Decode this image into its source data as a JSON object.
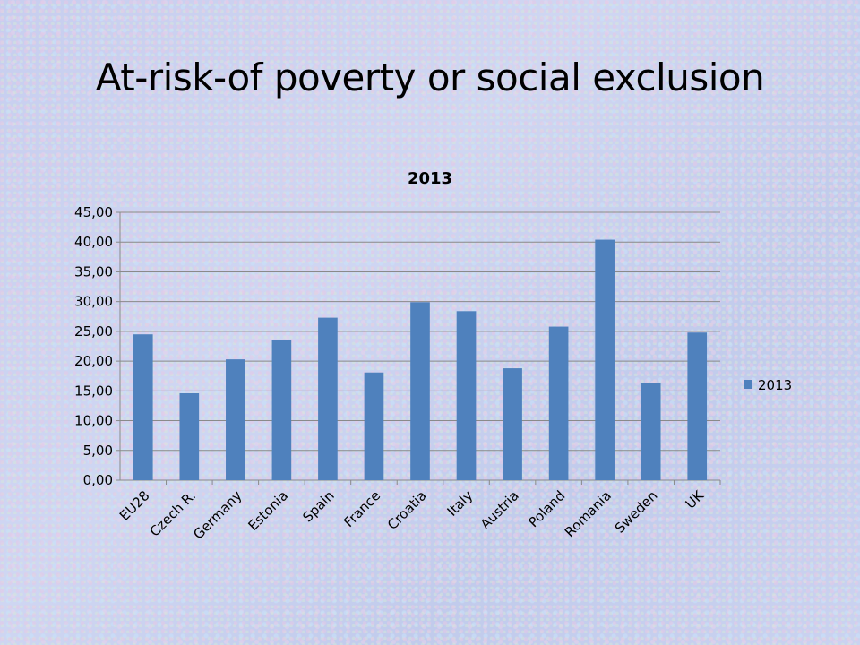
{
  "slide": {
    "title": "At-risk-of poverty or social exclusion"
  },
  "chart_data": {
    "type": "bar",
    "title": "2013",
    "xlabel": "",
    "ylabel": "",
    "categories": [
      "EU28",
      "Czech R.",
      "Germany",
      "Estonia",
      "Spain",
      "France",
      "Croatia",
      "Italy",
      "Austria",
      "Poland",
      "Romania",
      "Sweden",
      "UK"
    ],
    "series": [
      {
        "name": "2013",
        "values": [
          24.5,
          14.6,
          20.3,
          23.5,
          27.3,
          18.1,
          29.9,
          28.4,
          18.8,
          25.8,
          40.4,
          16.4,
          24.8
        ]
      }
    ],
    "ylim": [
      0,
      45
    ],
    "yticks": [
      "0,00",
      "5,00",
      "10,00",
      "15,00",
      "20,00",
      "25,00",
      "30,00",
      "35,00",
      "40,00",
      "45,00"
    ],
    "ytick_values": [
      0,
      5,
      10,
      15,
      20,
      25,
      30,
      35,
      40,
      45
    ],
    "grid": true,
    "legend_position": "right",
    "bar_color": "#4f81bd",
    "grid_color": "#8a8a8a"
  }
}
